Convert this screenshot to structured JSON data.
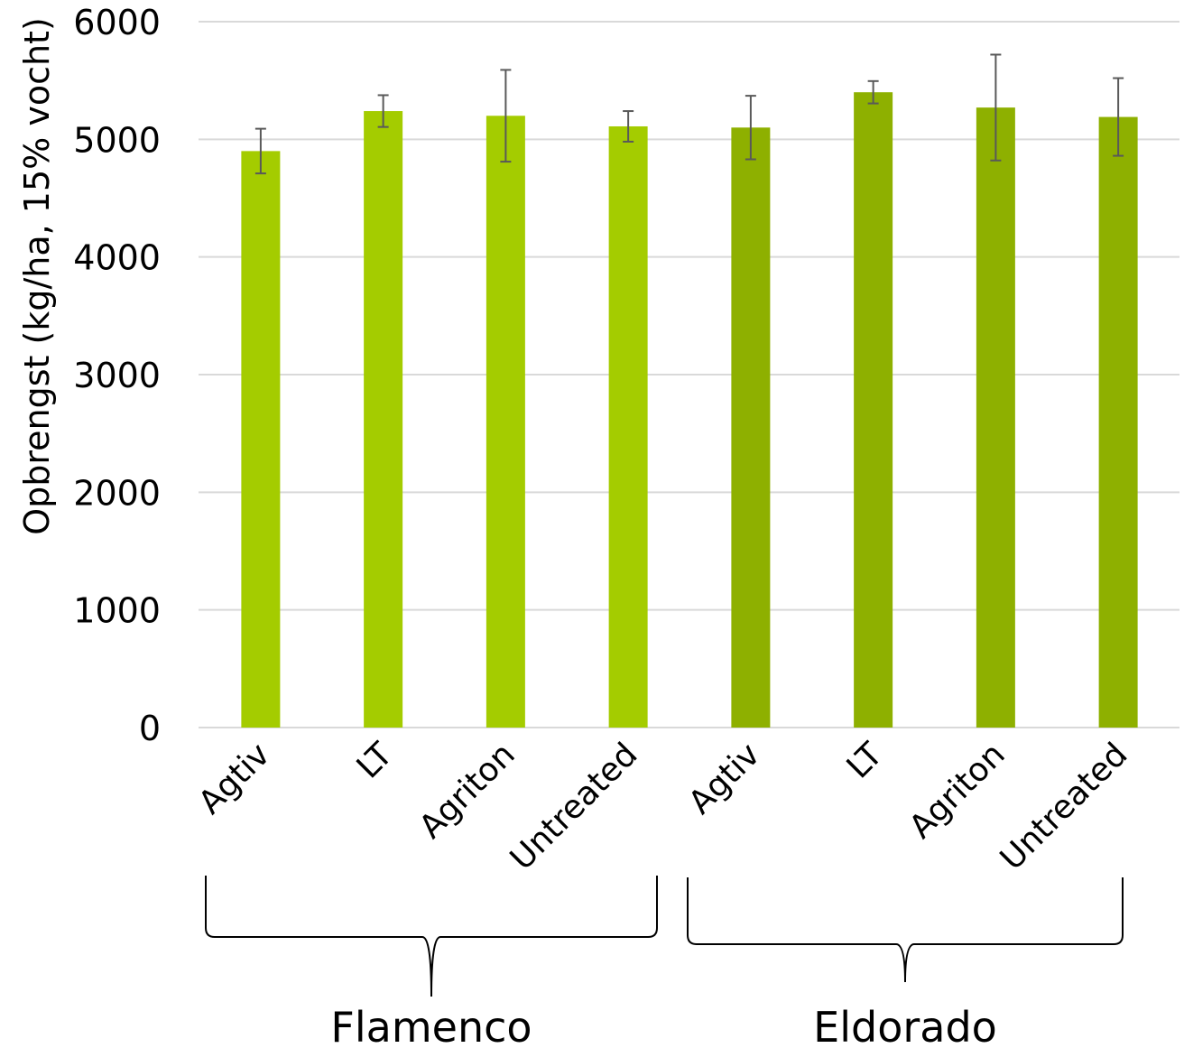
{
  "chart_data": {
    "type": "bar",
    "ylabel": "Opbrengst (kg/ha, 15% vocht)",
    "ylim": [
      0,
      6000
    ],
    "yticks": [
      0,
      1000,
      2000,
      3000,
      4000,
      5000,
      6000
    ],
    "grid": true,
    "groups": [
      {
        "name": "Flamenco",
        "color": "#a4cc00",
        "categories": [
          "Agtiv",
          "LT",
          "Agriton",
          "Untreated"
        ],
        "values": [
          4900,
          5240,
          5200,
          5110
        ],
        "errors": [
          190,
          135,
          390,
          130
        ]
      },
      {
        "name": "Eldorado",
        "color": "#8eb000",
        "categories": [
          "Agtiv",
          "LT",
          "Agriton",
          "Untreated"
        ],
        "values": [
          5100,
          5400,
          5270,
          5190
        ],
        "errors": [
          270,
          95,
          450,
          330
        ]
      }
    ]
  }
}
